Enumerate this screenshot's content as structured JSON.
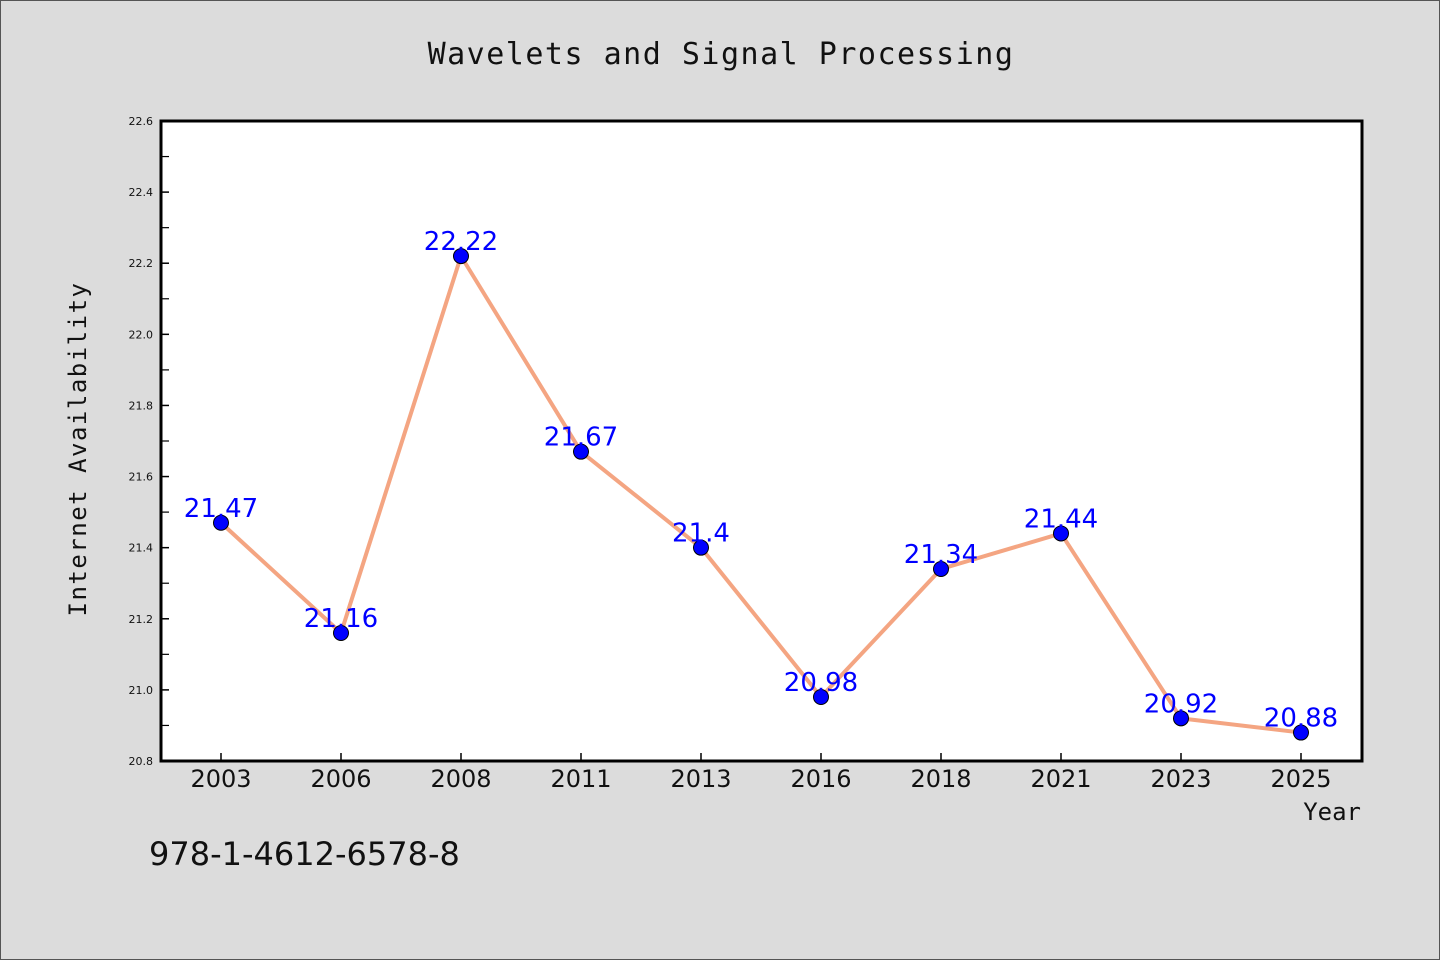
{
  "chart_data": {
    "type": "line",
    "title": "Wavelets and Signal Processing",
    "xlabel": "Year",
    "ylabel": "Internet Availability",
    "categories": [
      "2003",
      "2006",
      "2008",
      "2011",
      "2013",
      "2016",
      "2018",
      "2021",
      "2023",
      "2025"
    ],
    "series": [
      {
        "values": [
          21.47,
          21.16,
          22.22,
          21.67,
          21.4,
          20.98,
          21.34,
          21.44,
          20.92,
          20.88
        ],
        "data_labels": [
          "21.47",
          "21.16",
          "22.22",
          "21.67",
          "21.4",
          "20.98",
          "21.34",
          "21.44",
          "20.92",
          "20.88"
        ]
      }
    ],
    "ylim": [
      20.8,
      22.6
    ],
    "yticks": [
      "20.8",
      "21.0",
      "21.2",
      "21.4",
      "21.6",
      "21.8",
      "22.0",
      "22.2",
      "22.4",
      "22.6"
    ],
    "grid": false,
    "colors": {
      "line": "#f4a582",
      "marker": "#0000ff",
      "data_label": "#0000ff"
    }
  },
  "footer_code": "978-1-4612-6578-8"
}
